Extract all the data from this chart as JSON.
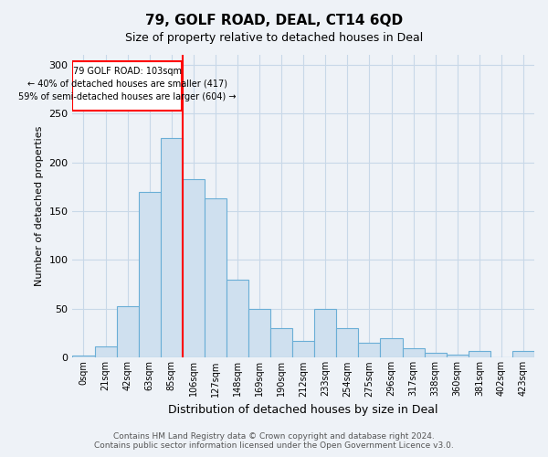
{
  "title1": "79, GOLF ROAD, DEAL, CT14 6QD",
  "title2": "Size of property relative to detached houses in Deal",
  "xlabel": "Distribution of detached houses by size in Deal",
  "ylabel": "Number of detached properties",
  "categories": [
    "0sqm",
    "21sqm",
    "42sqm",
    "63sqm",
    "85sqm",
    "106sqm",
    "127sqm",
    "148sqm",
    "169sqm",
    "190sqm",
    "212sqm",
    "233sqm",
    "254sqm",
    "275sqm",
    "296sqm",
    "317sqm",
    "338sqm",
    "360sqm",
    "381sqm",
    "402sqm",
    "423sqm"
  ],
  "values": [
    2,
    12,
    53,
    170,
    225,
    183,
    163,
    80,
    50,
    30,
    17,
    50,
    30,
    15,
    20,
    10,
    5,
    3,
    7,
    0,
    7
  ],
  "bar_color": "#cfe0ef",
  "bar_edge_color": "#6aaed6",
  "ylim": [
    0,
    310
  ],
  "yticks": [
    0,
    50,
    100,
    150,
    200,
    250,
    300
  ],
  "annotation_text1": "79 GOLF ROAD: 103sqm",
  "annotation_text2": "← 40% of detached houses are smaller (417)",
  "annotation_text3": "59% of semi-detached houses are larger (604) →",
  "footer1": "Contains HM Land Registry data © Crown copyright and database right 2024.",
  "footer2": "Contains public sector information licensed under the Open Government Licence v3.0.",
  "background_color": "#eef2f7",
  "plot_background": "#eef2f7",
  "grid_color": "#c8d8e8"
}
